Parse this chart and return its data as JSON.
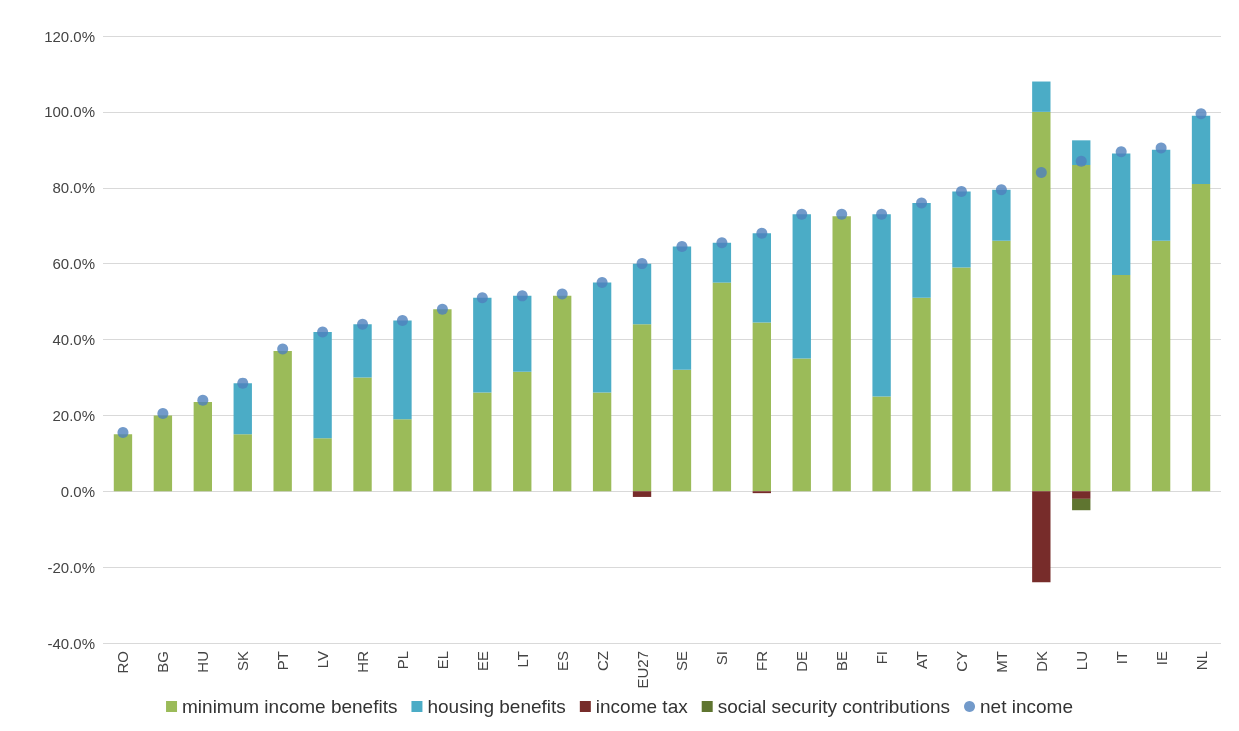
{
  "chart_data": {
    "type": "bar",
    "stacked": true,
    "categories": [
      "RO",
      "BG",
      "HU",
      "SK",
      "PT",
      "LV",
      "HR",
      "PL",
      "EL",
      "EE",
      "LT",
      "ES",
      "CZ",
      "EU27",
      "SE",
      "SI",
      "FR",
      "DE",
      "BE",
      "FI",
      "AT",
      "CY",
      "MT",
      "DK",
      "LU",
      "IT",
      "IE",
      "NL"
    ],
    "series": [
      {
        "name": "minimum income benefits",
        "color": "#9bbb59",
        "values": [
          15,
          20,
          23.5,
          15,
          37,
          14,
          30,
          19,
          48,
          26,
          31.5,
          51.5,
          26,
          44,
          32,
          55,
          44.5,
          35,
          72.5,
          25,
          51,
          59,
          66,
          100,
          86,
          57,
          66,
          81
        ]
      },
      {
        "name": "housing benefits",
        "color": "#4bacc6",
        "values": [
          0,
          0,
          0,
          13.5,
          0,
          28,
          14,
          26,
          0,
          25,
          20,
          0,
          29,
          16,
          32.5,
          10.5,
          23.5,
          38,
          0,
          48,
          25,
          20,
          13.5,
          8,
          6.5,
          32,
          24,
          18
        ]
      },
      {
        "name": "income tax",
        "color": "#772c2a",
        "values": [
          0,
          0,
          0,
          0,
          0,
          0,
          0,
          0,
          0,
          0,
          0,
          0,
          0,
          -1.5,
          0,
          0,
          -0.5,
          0,
          0,
          0,
          0,
          0,
          0,
          -24,
          -2,
          0,
          0,
          0
        ]
      },
      {
        "name": "social security contributions",
        "color": "#5f7530",
        "values": [
          0,
          0,
          0,
          0,
          0,
          0,
          0,
          0,
          0,
          0,
          0,
          0,
          0,
          0,
          0,
          0,
          0,
          0,
          0,
          0,
          0,
          0,
          0,
          0,
          -3,
          0,
          0,
          0
        ]
      },
      {
        "name": "net income",
        "type": "scatter",
        "marker": "circle",
        "color": "#4f81bd",
        "values": [
          15.5,
          20.5,
          24,
          28.5,
          37.5,
          42,
          44,
          45,
          48,
          51,
          51.5,
          52,
          55,
          60,
          64.5,
          65.5,
          68,
          73,
          73,
          73,
          76,
          79,
          79.5,
          84,
          87,
          89.5,
          90.5,
          99.5
        ]
      }
    ],
    "ylim": [
      -40,
      120
    ],
    "yticks": [
      {
        "value": -40,
        "label": "-40.0%"
      },
      {
        "value": -20,
        "label": "-20.0%"
      },
      {
        "value": 0,
        "label": "0.0%"
      },
      {
        "value": 20,
        "label": "20.0%"
      },
      {
        "value": 40,
        "label": "40.0%"
      },
      {
        "value": 60,
        "label": "60.0%"
      },
      {
        "value": 80,
        "label": "80.0%"
      },
      {
        "value": 100,
        "label": "100.0%"
      },
      {
        "value": 120,
        "label": "120.0%"
      }
    ],
    "grid": "y",
    "legend": "bottom"
  }
}
